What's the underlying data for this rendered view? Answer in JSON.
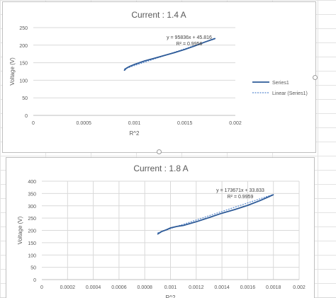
{
  "chart_data": [
    {
      "type": "line",
      "title": "Current : 1.4 A",
      "xlabel": "R^2",
      "ylabel": "Voltage (V)",
      "xlim": [
        0,
        0.002
      ],
      "ylim": [
        0,
        250
      ],
      "x_ticks": [
        0,
        0.0005,
        0.001,
        0.0015,
        0.002
      ],
      "x_tick_labels": [
        "0",
        "0.0005",
        "0.001",
        "0.0015",
        "0.002"
      ],
      "y_ticks": [
        0,
        50,
        100,
        150,
        200,
        250
      ],
      "y_tick_labels": [
        "0",
        "50",
        "100",
        "150",
        "200",
        "250"
      ],
      "grid": "horizontal",
      "legend_position": "right",
      "legend": [
        "Series1",
        "Linear (Series1)"
      ],
      "series": [
        {
          "name": "Series1",
          "color": "#2e5b98",
          "x": [
            0.0009,
            0.00092,
            0.00095,
            0.001,
            0.00105,
            0.0011,
            0.0012,
            0.0013,
            0.0014,
            0.0015,
            0.0016,
            0.0017,
            0.0018
          ],
          "y": [
            128,
            134,
            139,
            145,
            150,
            155,
            163,
            171,
            179,
            188,
            198,
            209,
            219
          ]
        }
      ],
      "trendline": {
        "name": "Linear (Series1)",
        "slope": 95836,
        "intercept": 45.816,
        "x_range": [
          0.0009,
          0.0018
        ],
        "equation": "y = 95836x + 45.816",
        "r2": "R² = 0.9956"
      }
    },
    {
      "type": "line",
      "title": "Current : 1.8 A",
      "xlabel": "R^2",
      "ylabel": "Voltage (V)",
      "xlim": [
        0,
        0.002
      ],
      "ylim": [
        0,
        400
      ],
      "x_ticks": [
        0,
        0.0002,
        0.0004,
        0.0006,
        0.0008,
        0.001,
        0.0012,
        0.0014,
        0.0016,
        0.0018,
        0.002
      ],
      "x_tick_labels": [
        "0",
        "0.0002",
        "0.0004",
        "0.0006",
        "0.0008",
        "0.001",
        "0.0012",
        "0.0014",
        "0.0016",
        "0.0018",
        "0.002"
      ],
      "y_ticks": [
        0,
        50,
        100,
        150,
        200,
        250,
        300,
        350,
        400
      ],
      "y_tick_labels": [
        "0",
        "50",
        "100",
        "150",
        "200",
        "250",
        "300",
        "350",
        "400"
      ],
      "grid": "both",
      "series": [
        {
          "color": "#2e5b98",
          "x": [
            0.0009,
            0.00093,
            0.00097,
            0.001,
            0.00105,
            0.0011,
            0.0012,
            0.0013,
            0.0014,
            0.0015,
            0.0016,
            0.0017,
            0.0018
          ],
          "y": [
            185,
            195,
            203,
            210,
            216,
            220,
            235,
            252,
            270,
            285,
            302,
            322,
            345
          ]
        }
      ],
      "trendline": {
        "slope": 173671,
        "intercept": 33.833,
        "x_range": [
          0.0009,
          0.0018
        ],
        "equation": "y = 173671x + 33.833",
        "r2": "R² = 0.9959"
      }
    }
  ]
}
